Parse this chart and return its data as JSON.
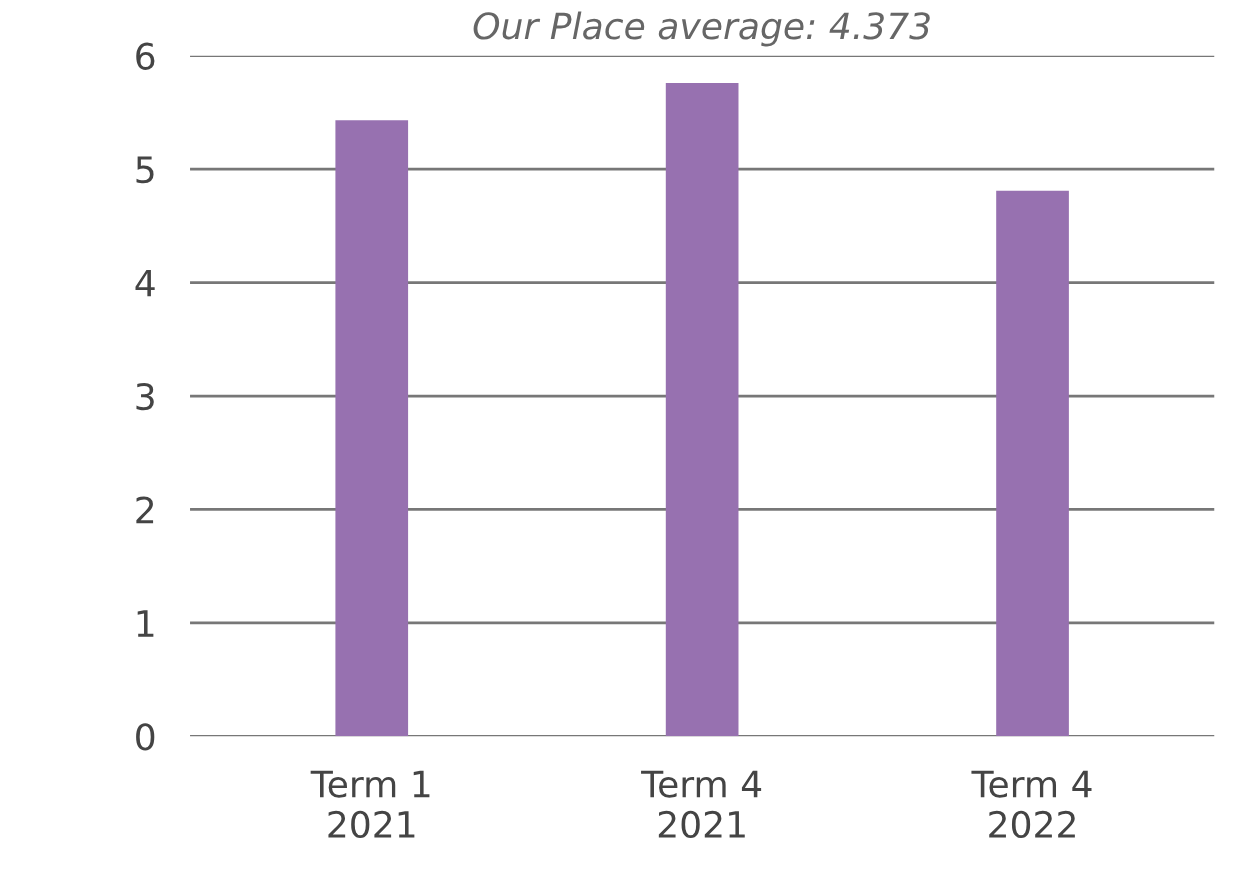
{
  "chart_data": {
    "type": "bar",
    "title": "Our Place average: 4.373",
    "categories": [
      "Term 1\n2021",
      "Term 4\n2021",
      "Term 4\n2022"
    ],
    "values": [
      5.43,
      5.76,
      4.81
    ],
    "color": "#9771b0",
    "ylim": [
      0,
      6
    ],
    "yticks": [
      0,
      1,
      2,
      3,
      4,
      5,
      6
    ],
    "grid": "y"
  }
}
